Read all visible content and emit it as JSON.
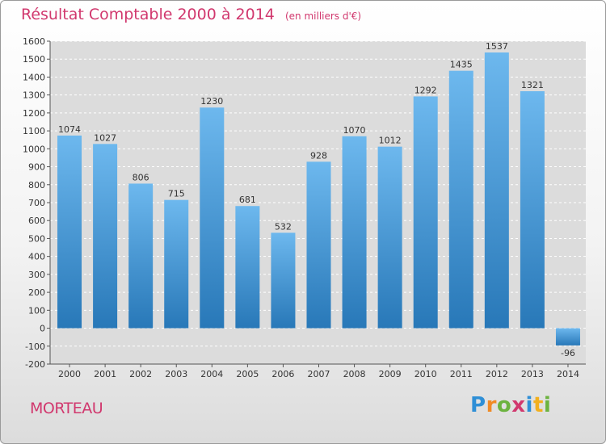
{
  "header": {
    "title": "Résultat Comptable 2000 à 2014",
    "unit": "(en milliers d'€)"
  },
  "commune": "MORTEAU",
  "logo": {
    "text": "Proxiti"
  },
  "colors": {
    "bar_top": "#6db8ee",
    "bar_bottom": "#2878b8",
    "title": "#d1386e",
    "plot_bg": "#dcdcdc"
  },
  "chart_data": {
    "type": "bar",
    "title": "Résultat Comptable 2000 à 2014",
    "subtitle": "(en milliers d'€)",
    "xlabel": "",
    "ylabel": "",
    "ylim": [
      -200,
      1600
    ],
    "yticks": [
      -200,
      -100,
      0,
      100,
      200,
      300,
      400,
      500,
      600,
      700,
      800,
      900,
      1000,
      1100,
      1200,
      1300,
      1400,
      1500,
      1600
    ],
    "grid": "horizontal dashed",
    "categories": [
      "2000",
      "2001",
      "2002",
      "2003",
      "2004",
      "2005",
      "2006",
      "2007",
      "2008",
      "2009",
      "2010",
      "2011",
      "2012",
      "2013",
      "2014"
    ],
    "values": [
      1074,
      1027,
      806,
      715,
      1230,
      681,
      532,
      928,
      1070,
      1012,
      1292,
      1435,
      1537,
      1321,
      -96
    ]
  }
}
